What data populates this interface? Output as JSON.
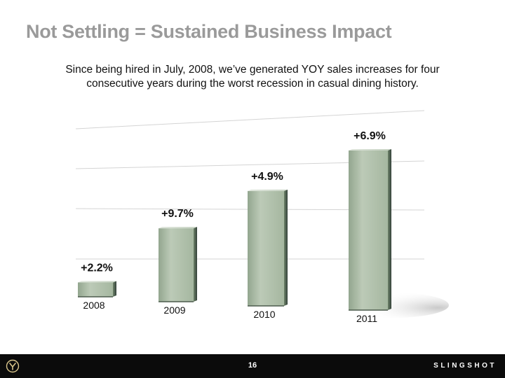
{
  "slide": {
    "title": "Not Settling = Sustained Business Impact",
    "subtitle": "Since being hired in July, 2008, we’ve generated YOY sales increases for four consecutive years during the worst recession in casual dining history."
  },
  "chart_data": {
    "type": "bar",
    "categories": [
      "2008",
      "2009",
      "2010",
      "2011"
    ],
    "values": [
      2.2,
      9.7,
      4.9,
      6.9
    ],
    "data_labels": [
      "+2.2%",
      "+9.7%",
      "+4.9%",
      "+6.9%"
    ],
    "bar_heights_relative": [
      0.09,
      0.46,
      0.72,
      1.0
    ],
    "grid": true,
    "legend": "none",
    "colors": {
      "bar": "#b3c3ae",
      "bar_dark": "#5f7460",
      "grid": "#d4d4d4"
    }
  },
  "footer": {
    "page_number": "16",
    "brand": "SLINGSHOT",
    "logo_icon": "slingshot-logo-icon"
  }
}
